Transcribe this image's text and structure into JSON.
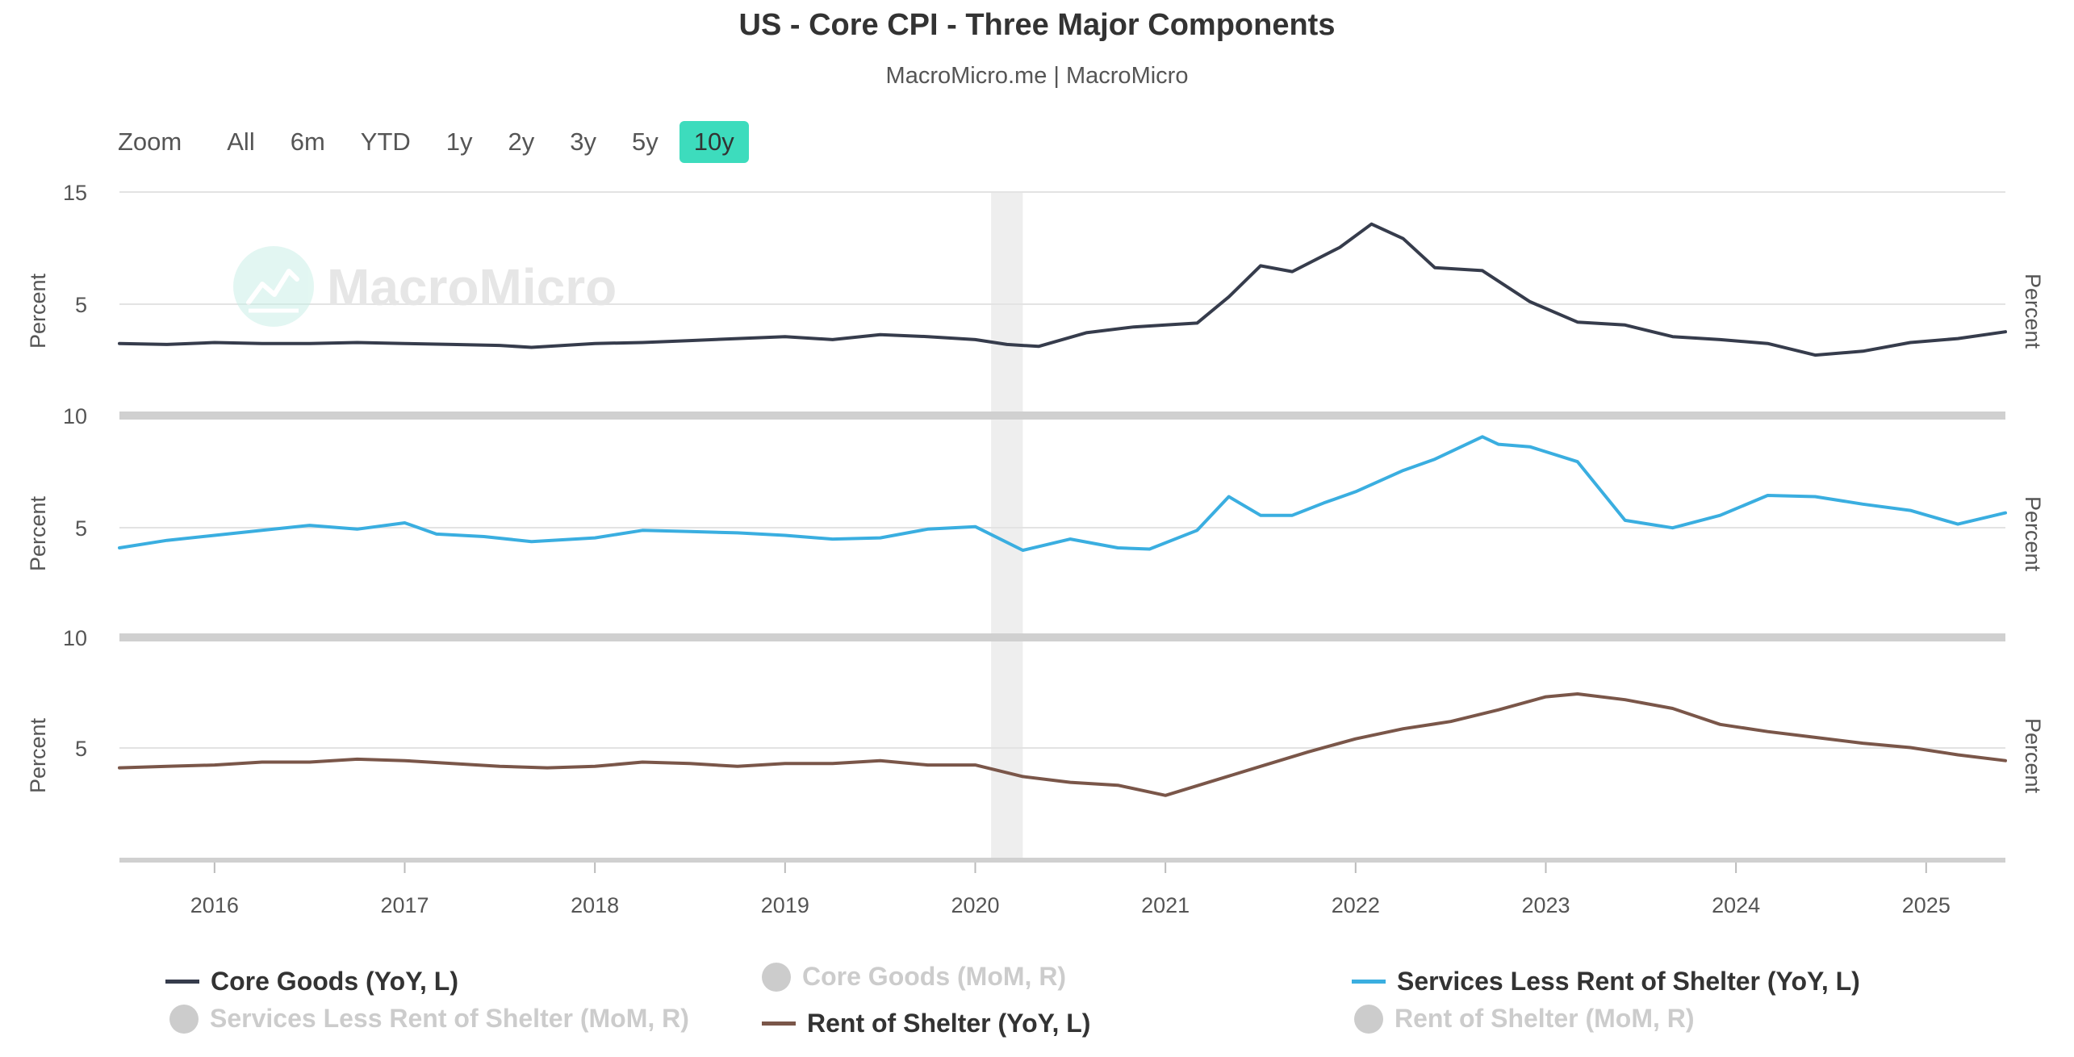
{
  "header": {
    "title": "US - Core CPI - Three Major Components",
    "subtitle": "MacroMicro.me | MacroMicro"
  },
  "zoom": {
    "label": "Zoom",
    "buttons": [
      "All",
      "6m",
      "YTD",
      "1y",
      "2y",
      "3y",
      "5y",
      "10y"
    ],
    "active": "10y"
  },
  "watermark": "MacroMicro",
  "chart_data": {
    "type": "line",
    "x_tick_labels": [
      "2016",
      "2017",
      "2018",
      "2019",
      "2020",
      "2021",
      "2022",
      "2023",
      "2024",
      "2025"
    ],
    "shaded_period": [
      "2020-02",
      "2020-04"
    ],
    "panels": [
      {
        "ylabel_left": "Percent",
        "ylabel_right": "Percent",
        "y_ticks": [
          "15",
          "5"
        ],
        "series": [
          {
            "name": "Core Goods (YoY, L)",
            "color": "#363c4c",
            "points": [
              [
                "2015-07",
                -0.6
              ],
              [
                "2015-10",
                -0.7
              ],
              [
                "2016-01",
                -0.5
              ],
              [
                "2016-04",
                -0.6
              ],
              [
                "2016-07",
                -0.6
              ],
              [
                "2016-10",
                -0.5
              ],
              [
                "2017-01",
                -0.6
              ],
              [
                "2017-04",
                -0.7
              ],
              [
                "2017-07",
                -0.8
              ],
              [
                "2017-09",
                -1.0
              ],
              [
                "2018-01",
                -0.6
              ],
              [
                "2018-04",
                -0.5
              ],
              [
                "2018-07",
                -0.3
              ],
              [
                "2018-10",
                -0.1
              ],
              [
                "2019-01",
                0.1
              ],
              [
                "2019-04",
                -0.2
              ],
              [
                "2019-07",
                0.3
              ],
              [
                "2019-10",
                0.1
              ],
              [
                "2020-01",
                -0.2
              ],
              [
                "2020-03",
                -0.7
              ],
              [
                "2020-05",
                -0.9
              ],
              [
                "2020-08",
                0.5
              ],
              [
                "2020-11",
                1.1
              ],
              [
                "2021-01",
                1.3
              ],
              [
                "2021-03",
                1.5
              ],
              [
                "2021-05",
                4.2
              ],
              [
                "2021-07",
                7.4
              ],
              [
                "2021-09",
                6.8
              ],
              [
                "2021-12",
                9.3
              ],
              [
                "2022-02",
                11.7
              ],
              [
                "2022-04",
                10.2
              ],
              [
                "2022-06",
                7.2
              ],
              [
                "2022-09",
                6.9
              ],
              [
                "2022-12",
                3.7
              ],
              [
                "2023-03",
                1.6
              ],
              [
                "2023-06",
                1.3
              ],
              [
                "2023-09",
                0.1
              ],
              [
                "2023-12",
                -0.2
              ],
              [
                "2024-03",
                -0.6
              ],
              [
                "2024-06",
                -1.8
              ],
              [
                "2024-09",
                -1.4
              ],
              [
                "2024-12",
                -0.5
              ],
              [
                "2025-03",
                -0.1
              ],
              [
                "2025-06",
                0.6
              ]
            ]
          }
        ]
      },
      {
        "ylabel_left": "Percent",
        "ylabel_right": "Percent",
        "y_ticks": [
          "10",
          "5"
        ],
        "series": [
          {
            "name": "Services Less Rent of Shelter (YoY, L)",
            "color": "#3aaee0",
            "points": [
              [
                "2015-07",
                1.6
              ],
              [
                "2015-10",
                2.2
              ],
              [
                "2016-01",
                2.6
              ],
              [
                "2016-04",
                3.0
              ],
              [
                "2016-07",
                3.4
              ],
              [
                "2016-10",
                3.1
              ],
              [
                "2017-01",
                3.6
              ],
              [
                "2017-03",
                2.7
              ],
              [
                "2017-06",
                2.5
              ],
              [
                "2017-09",
                2.1
              ],
              [
                "2018-01",
                2.4
              ],
              [
                "2018-04",
                3.0
              ],
              [
                "2018-07",
                2.9
              ],
              [
                "2018-10",
                2.8
              ],
              [
                "2019-01",
                2.6
              ],
              [
                "2019-04",
                2.3
              ],
              [
                "2019-07",
                2.4
              ],
              [
                "2019-10",
                3.1
              ],
              [
                "2020-01",
                3.3
              ],
              [
                "2020-04",
                1.4
              ],
              [
                "2020-07",
                2.3
              ],
              [
                "2020-10",
                1.6
              ],
              [
                "2020-12",
                1.5
              ],
              [
                "2021-03",
                3.0
              ],
              [
                "2021-05",
                5.7
              ],
              [
                "2021-07",
                4.2
              ],
              [
                "2021-09",
                4.2
              ],
              [
                "2021-11",
                5.2
              ],
              [
                "2022-01",
                6.1
              ],
              [
                "2022-04",
                7.8
              ],
              [
                "2022-06",
                8.7
              ],
              [
                "2022-09",
                10.5
              ],
              [
                "2022-10",
                9.9
              ],
              [
                "2022-12",
                9.7
              ],
              [
                "2023-03",
                8.5
              ],
              [
                "2023-06",
                3.8
              ],
              [
                "2023-09",
                3.2
              ],
              [
                "2023-12",
                4.2
              ],
              [
                "2024-03",
                5.8
              ],
              [
                "2024-06",
                5.7
              ],
              [
                "2024-09",
                5.1
              ],
              [
                "2024-12",
                4.6
              ],
              [
                "2025-03",
                3.5
              ],
              [
                "2025-06",
                4.4
              ]
            ]
          }
        ]
      },
      {
        "ylabel_left": "Percent",
        "ylabel_right": "Percent",
        "y_ticks": [
          "10",
          "5"
        ],
        "series": [
          {
            "name": "Rent of Shelter (YoY, L)",
            "color": "#7a5649",
            "points": [
              [
                "2015-07",
                3.2
              ],
              [
                "2015-10",
                3.3
              ],
              [
                "2016-01",
                3.4
              ],
              [
                "2016-04",
                3.6
              ],
              [
                "2016-07",
                3.6
              ],
              [
                "2016-10",
                3.8
              ],
              [
                "2017-01",
                3.7
              ],
              [
                "2017-04",
                3.5
              ],
              [
                "2017-07",
                3.3
              ],
              [
                "2017-10",
                3.2
              ],
              [
                "2018-01",
                3.3
              ],
              [
                "2018-04",
                3.6
              ],
              [
                "2018-07",
                3.5
              ],
              [
                "2018-10",
                3.3
              ],
              [
                "2019-01",
                3.5
              ],
              [
                "2019-04",
                3.5
              ],
              [
                "2019-07",
                3.7
              ],
              [
                "2019-10",
                3.4
              ],
              [
                "2020-01",
                3.4
              ],
              [
                "2020-04",
                2.6
              ],
              [
                "2020-07",
                2.2
              ],
              [
                "2020-10",
                2.0
              ],
              [
                "2021-01",
                1.3
              ],
              [
                "2021-04",
                2.3
              ],
              [
                "2021-07",
                3.3
              ],
              [
                "2021-10",
                4.3
              ],
              [
                "2022-01",
                5.2
              ],
              [
                "2022-04",
                5.9
              ],
              [
                "2022-07",
                6.4
              ],
              [
                "2022-10",
                7.2
              ],
              [
                "2023-01",
                8.1
              ],
              [
                "2023-03",
                8.3
              ],
              [
                "2023-06",
                7.9
              ],
              [
                "2023-09",
                7.3
              ],
              [
                "2023-12",
                6.2
              ],
              [
                "2024-03",
                5.7
              ],
              [
                "2024-06",
                5.3
              ],
              [
                "2024-09",
                4.9
              ],
              [
                "2024-12",
                4.6
              ],
              [
                "2025-03",
                4.1
              ],
              [
                "2025-06",
                3.7
              ]
            ]
          }
        ]
      }
    ]
  },
  "legend": {
    "items": [
      {
        "label": "Core Goods (YoY, L)",
        "color": "#363c4c",
        "visible": true
      },
      {
        "label": "Core Goods (MoM, R)",
        "color": "#cccccc",
        "visible": false
      },
      {
        "label": "Services Less Rent of Shelter (YoY, L)",
        "color": "#3aaee0",
        "visible": true
      },
      {
        "label": "Services Less Rent of Shelter (MoM, R)",
        "color": "#cccccc",
        "visible": false
      },
      {
        "label": "Rent of Shelter (YoY, L)",
        "color": "#7a5649",
        "visible": true
      },
      {
        "label": "Rent of Shelter (MoM, R)",
        "color": "#cccccc",
        "visible": false
      }
    ]
  }
}
